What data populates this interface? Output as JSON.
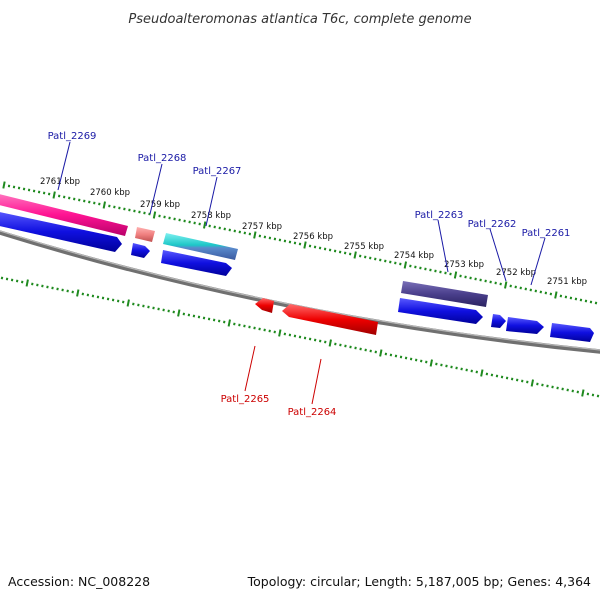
{
  "title": "Pseudoalteromonas atlantica T6c, complete genome",
  "footer": {
    "accession": "Accession: NC_008228",
    "topology": "Topology: circular; Length: 5,187,005 bp; Genes: 4,364"
  },
  "ticks": [
    "2761 kbp",
    "2760 kbp",
    "2759 kbp",
    "2758 kbp",
    "2757 kbp",
    "2756 kbp",
    "2755 kbp",
    "2754 kbp",
    "2753 kbp",
    "2752 kbp",
    "2751 kbp"
  ],
  "genes_top": [
    "Patl_2269",
    "Patl_2268",
    "Patl_2267",
    "Patl_2263",
    "Patl_2262",
    "Patl_2261"
  ],
  "genes_bottom": [
    "Patl_2265",
    "Patl_2264"
  ],
  "colors": {
    "forward_cds": "#1010e0",
    "reverse_cds": "#ee0000",
    "magenta": "#ff1493",
    "salmon": "#f08080",
    "cyan": "#1cc7c7",
    "slate": "#4a3f8c",
    "backbone": "#808080",
    "tick_green": "#1f8a1f",
    "top_label": "#1a1aa6",
    "bottom_label": "#cc0000"
  }
}
